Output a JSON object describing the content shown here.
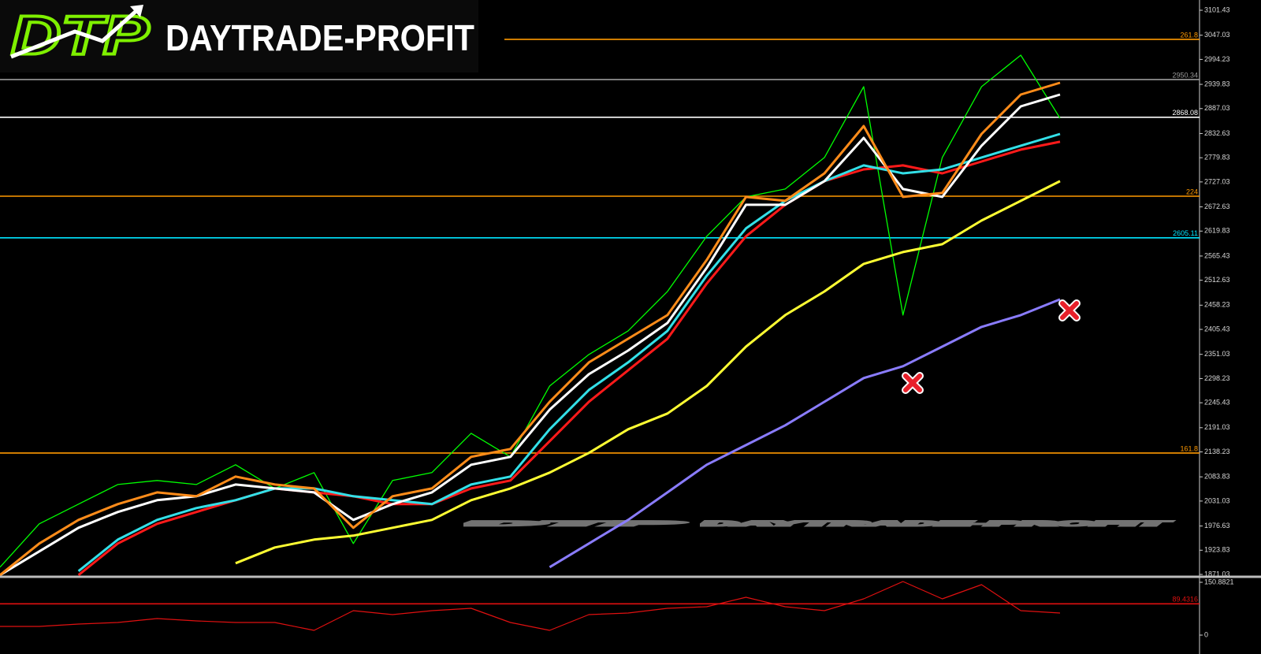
{
  "brand": {
    "logo": "DTP",
    "name": "DAYTRADE-PROFIT"
  },
  "chart_data": [
    {
      "type": "line",
      "ylim": [
        1867.6,
        3123.8
      ],
      "yticks": [
        3101.43,
        3047.03,
        2994.23,
        2939.83,
        2887.03,
        2832.63,
        2779.83,
        2727.03,
        2672.63,
        2619.83,
        2565.43,
        2512.63,
        2458.23,
        2405.43,
        2351.03,
        2298.23,
        2245.43,
        2191.03,
        2138.23,
        2083.83,
        2031.03,
        1976.63,
        1923.83,
        1871.03
      ],
      "levels": [
        {
          "value": 3037.9,
          "label": "261.8",
          "color": "#ff9900"
        },
        {
          "value": 2950.34,
          "label": "2950.34",
          "color": "#9a9a9a"
        },
        {
          "value": 2868.08,
          "label": "2868.08",
          "color": "#ffffff"
        },
        {
          "value": 2695.9,
          "label": "224",
          "color": "#ff9900"
        },
        {
          "value": 2605.11,
          "label": "2605.11",
          "color": "#00e5ff"
        },
        {
          "value": 2135.8,
          "label": "161.8",
          "color": "#ff9900"
        }
      ],
      "series": [
        {
          "color": "#00ff00",
          "width": 1.3,
          "values": [
            1886.8,
            1981.3,
            2024.3,
            2067.2,
            2075.8,
            2067.2,
            2110.2,
            2058.6,
            2093.0,
            1938.4,
            2075.8,
            2093.0,
            2178.9,
            2127.4,
            2282.0,
            2350.7,
            2402.2,
            2488.1,
            2608.4,
            2694.3,
            2711.5,
            2780.2,
            2934.8,
            2436.6,
            2780.2,
            2934.8,
            3003.5,
            2866.1
          ]
        },
        {
          "color": "#8a7cff",
          "width": 3,
          "values": [
            null,
            null,
            null,
            null,
            null,
            null,
            null,
            null,
            null,
            null,
            null,
            null,
            null,
            null,
            1886.8,
            1938.4,
            1989.9,
            2050.0,
            2110.2,
            2153.1,
            2196.2,
            2247.6,
            2299.2,
            2325.0,
            2367.9,
            2410.8,
            2436.6,
            2470.9
          ]
        },
        {
          "color": "#ffff33",
          "width": 3,
          "values": [
            null,
            null,
            null,
            null,
            null,
            null,
            1895.4,
            1929.8,
            1947.0,
            1955.6,
            1972.7,
            1989.9,
            2032.9,
            2058.6,
            2093.0,
            2136.0,
            2187.5,
            2221.9,
            2282.0,
            2367.9,
            2436.6,
            2488.1,
            2548.3,
            2574.0,
            2591.2,
            2642.8,
            2685.7,
            2728.7
          ]
        },
        {
          "color": "#ff1a1a",
          "width": 3,
          "values": [
            null,
            null,
            1869.7,
            1938.4,
            1981.3,
            2007.1,
            2032.9,
            2058.6,
            2050.0,
            2041.5,
            2024.3,
            2024.3,
            2058.6,
            2075.8,
            2161.7,
            2247.6,
            2316.3,
            2385.1,
            2505.3,
            2608.4,
            2677.1,
            2728.7,
            2754.4,
            2763.1,
            2745.8,
            2771.6,
            2797.4,
            2814.6
          ]
        },
        {
          "color": "#33e0e8",
          "width": 3,
          "values": [
            null,
            null,
            1878.2,
            1946.9,
            1989.9,
            2015.7,
            2032.9,
            2058.6,
            2058.6,
            2041.5,
            2032.9,
            2024.3,
            2067.2,
            2084.4,
            2187.5,
            2273.4,
            2333.5,
            2402.2,
            2522.5,
            2625.6,
            2685.7,
            2728.7,
            2763.1,
            2745.8,
            2754.4,
            2780.2,
            2806.0,
            2831.7
          ]
        },
        {
          "color": "#ffffff",
          "width": 3,
          "values": [
            1869.7,
            1921.2,
            1972.7,
            2007.1,
            2032.9,
            2041.5,
            2067.2,
            2058.6,
            2050.0,
            1989.9,
            2024.3,
            2050.0,
            2110.2,
            2127.4,
            2230.4,
            2307.7,
            2359.3,
            2419.4,
            2539.7,
            2677.1,
            2677.1,
            2728.7,
            2823.1,
            2711.5,
            2694.3,
            2806.0,
            2891.8,
            2917.6
          ]
        },
        {
          "color": "#ff8c1a",
          "width": 3,
          "values": [
            1869.7,
            1938.4,
            1989.9,
            2024.3,
            2050.0,
            2041.5,
            2084.4,
            2067.2,
            2058.6,
            1972.7,
            2041.5,
            2058.6,
            2127.4,
            2144.6,
            2247.6,
            2333.5,
            2385.1,
            2436.6,
            2556.9,
            2694.3,
            2685.7,
            2745.8,
            2848.9,
            2694.3,
            2702.9,
            2831.7,
            2917.6,
            2943.4
          ]
        }
      ]
    },
    {
      "type": "line",
      "ylim": [
        -54,
        164.4
      ],
      "yticks": [
        150.8821,
        0
      ],
      "levels": [
        {
          "value": 89.4316,
          "label": "89.4316",
          "color": "#e01010"
        }
      ],
      "series": [
        {
          "color": "#e01010",
          "width": 1.2,
          "values": [
            24.8,
            24.8,
            31.5,
            36.0,
            47.3,
            40.5,
            36.0,
            36.0,
            13.5,
            69.8,
            58.6,
            69.8,
            76.6,
            36.0,
            13.5,
            58.6,
            63.1,
            76.6,
            81.1,
            108.1,
            81.1,
            69.8,
            103.6,
            153.2,
            103.6,
            144.1,
            69.8,
            63.1
          ]
        }
      ]
    }
  ]
}
